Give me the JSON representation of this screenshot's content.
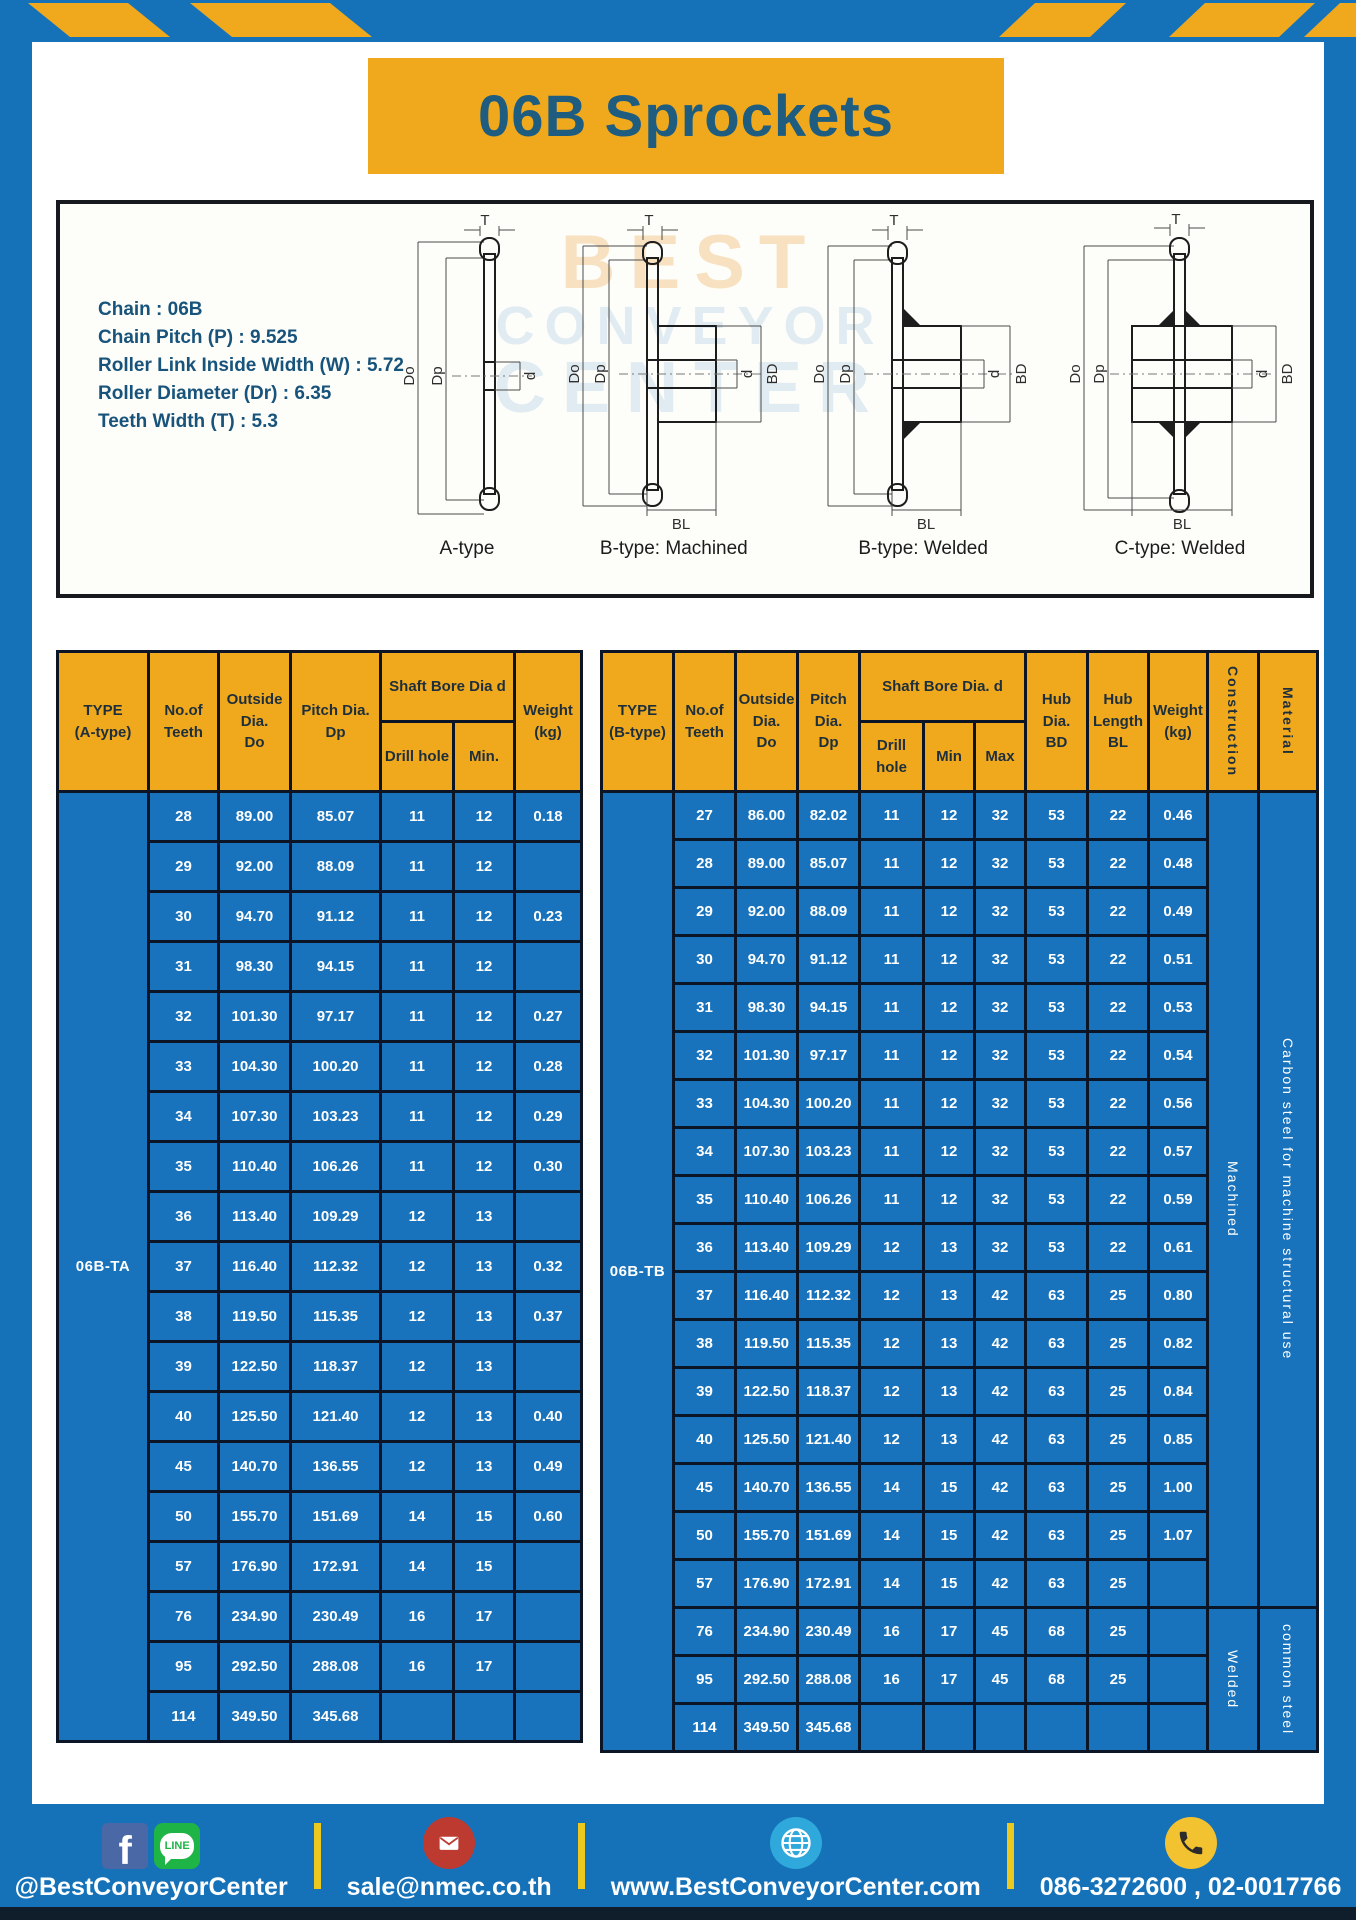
{
  "title": "06B Sprockets",
  "colors": {
    "page_blue": "#1572B9",
    "accent_yellow": "#F0A91D",
    "table_header_yellow": "#F0A81C",
    "title_text": "#1E5C80",
    "table_border": "#0B1526",
    "cell_text": "#FFFFFF",
    "divider_yellow": "#EDC91F"
  },
  "specs": {
    "lines": [
      "Chain : 06B",
      "Chain Pitch (P) : 9.525",
      "Roller Link Inside Width (W) : 5.72",
      "Roller Diameter (Dr) : 6.35",
      "Teeth Width (T) : 5.3"
    ]
  },
  "watermark": {
    "lines": [
      "BEST",
      "CONVEYOR",
      "CENTER"
    ]
  },
  "diagram": {
    "captions": [
      "A-type",
      "B-type: Machined",
      "B-type: Welded",
      "C-type: Welded"
    ],
    "labels": {
      "T": "T",
      "Do": "Do",
      "Dp": "Dp",
      "d": "d",
      "BD": "BD",
      "BL": "BL"
    }
  },
  "tables": {
    "left": {
      "type_label": "06B-TA",
      "header": {
        "type": "TYPE\n(A-type)",
        "teeth": "No.of\nTeeth",
        "outside": "Outside\nDia.\nDo",
        "pitch": "Pitch Dia.\nDp",
        "shaft_bore": "Shaft Bore Dia d",
        "drill": "Drill hole",
        "min": "Min.",
        "weight": "Weight\n(kg)"
      },
      "rows": [
        [
          "28",
          "89.00",
          "85.07",
          "11",
          "12",
          "0.18"
        ],
        [
          "29",
          "92.00",
          "88.09",
          "11",
          "12",
          ""
        ],
        [
          "30",
          "94.70",
          "91.12",
          "11",
          "12",
          "0.23"
        ],
        [
          "31",
          "98.30",
          "94.15",
          "11",
          "12",
          ""
        ],
        [
          "32",
          "101.30",
          "97.17",
          "11",
          "12",
          "0.27"
        ],
        [
          "33",
          "104.30",
          "100.20",
          "11",
          "12",
          "0.28"
        ],
        [
          "34",
          "107.30",
          "103.23",
          "11",
          "12",
          "0.29"
        ],
        [
          "35",
          "110.40",
          "106.26",
          "11",
          "12",
          "0.30"
        ],
        [
          "36",
          "113.40",
          "109.29",
          "12",
          "13",
          ""
        ],
        [
          "37",
          "116.40",
          "112.32",
          "12",
          "13",
          "0.32"
        ],
        [
          "38",
          "119.50",
          "115.35",
          "12",
          "13",
          "0.37"
        ],
        [
          "39",
          "122.50",
          "118.37",
          "12",
          "13",
          ""
        ],
        [
          "40",
          "125.50",
          "121.40",
          "12",
          "13",
          "0.40"
        ],
        [
          "45",
          "140.70",
          "136.55",
          "12",
          "13",
          "0.49"
        ],
        [
          "50",
          "155.70",
          "151.69",
          "14",
          "15",
          "0.60"
        ],
        [
          "57",
          "176.90",
          "172.91",
          "14",
          "15",
          ""
        ],
        [
          "76",
          "234.90",
          "230.49",
          "16",
          "17",
          ""
        ],
        [
          "95",
          "292.50",
          "288.08",
          "16",
          "17",
          ""
        ],
        [
          "114",
          "349.50",
          "345.68",
          "",
          "",
          ""
        ]
      ]
    },
    "right": {
      "type_label": "06B-TB",
      "header": {
        "type": "TYPE\n(B-type)",
        "teeth": "No.of\nTeeth",
        "outside": "Outside\nDia.\nDo",
        "pitch": "Pitch\nDia.\nDp",
        "shaft_bore": "Shaft Bore Dia. d",
        "drill": "Drill hole",
        "min": "Min",
        "max": "Max",
        "hub_dia": "Hub\nDia.\nBD",
        "hub_len": "Hub\nLength\nBL",
        "weight": "Weight\n(kg)",
        "construction": "Construction",
        "material": "Material"
      },
      "rows": [
        [
          "27",
          "86.00",
          "82.02",
          "11",
          "12",
          "32",
          "53",
          "22",
          "0.46"
        ],
        [
          "28",
          "89.00",
          "85.07",
          "11",
          "12",
          "32",
          "53",
          "22",
          "0.48"
        ],
        [
          "29",
          "92.00",
          "88.09",
          "11",
          "12",
          "32",
          "53",
          "22",
          "0.49"
        ],
        [
          "30",
          "94.70",
          "91.12",
          "11",
          "12",
          "32",
          "53",
          "22",
          "0.51"
        ],
        [
          "31",
          "98.30",
          "94.15",
          "11",
          "12",
          "32",
          "53",
          "22",
          "0.53"
        ],
        [
          "32",
          "101.30",
          "97.17",
          "11",
          "12",
          "32",
          "53",
          "22",
          "0.54"
        ],
        [
          "33",
          "104.30",
          "100.20",
          "11",
          "12",
          "32",
          "53",
          "22",
          "0.56"
        ],
        [
          "34",
          "107.30",
          "103.23",
          "11",
          "12",
          "32",
          "53",
          "22",
          "0.57"
        ],
        [
          "35",
          "110.40",
          "106.26",
          "11",
          "12",
          "32",
          "53",
          "22",
          "0.59"
        ],
        [
          "36",
          "113.40",
          "109.29",
          "12",
          "13",
          "32",
          "53",
          "22",
          "0.61"
        ],
        [
          "37",
          "116.40",
          "112.32",
          "12",
          "13",
          "42",
          "63",
          "25",
          "0.80"
        ],
        [
          "38",
          "119.50",
          "115.35",
          "12",
          "13",
          "42",
          "63",
          "25",
          "0.82"
        ],
        [
          "39",
          "122.50",
          "118.37",
          "12",
          "13",
          "42",
          "63",
          "25",
          "0.84"
        ],
        [
          "40",
          "125.50",
          "121.40",
          "12",
          "13",
          "42",
          "63",
          "25",
          "0.85"
        ],
        [
          "45",
          "140.70",
          "136.55",
          "14",
          "15",
          "42",
          "63",
          "25",
          "1.00"
        ],
        [
          "50",
          "155.70",
          "151.69",
          "14",
          "15",
          "42",
          "63",
          "25",
          "1.07"
        ],
        [
          "57",
          "176.90",
          "172.91",
          "14",
          "15",
          "42",
          "63",
          "25",
          ""
        ],
        [
          "76",
          "234.90",
          "230.49",
          "16",
          "17",
          "45",
          "68",
          "25",
          ""
        ],
        [
          "95",
          "292.50",
          "288.08",
          "16",
          "17",
          "45",
          "68",
          "25",
          ""
        ],
        [
          "114",
          "349.50",
          "345.68",
          "",
          "",
          "",
          "",
          "",
          ""
        ]
      ],
      "construction_groups": [
        {
          "label": "Machined",
          "rows": 17
        },
        {
          "label": "Welded",
          "rows": 3
        }
      ],
      "material_groups": [
        {
          "label": "Carbon steel for machine structural use",
          "rows": 17
        },
        {
          "label": "common steel",
          "rows": 3
        }
      ]
    }
  },
  "footer": {
    "facebook_glyph": "f",
    "line_badge": "LINE",
    "items": [
      {
        "icon": "facebook-line",
        "label": "@BestConveyorCenter"
      },
      {
        "icon": "mail",
        "label": "sale@nmec.co.th"
      },
      {
        "icon": "globe",
        "label": "www.BestConveyorCenter.com"
      },
      {
        "icon": "phone",
        "label": "086-3272600 , 02-0017766"
      }
    ]
  }
}
